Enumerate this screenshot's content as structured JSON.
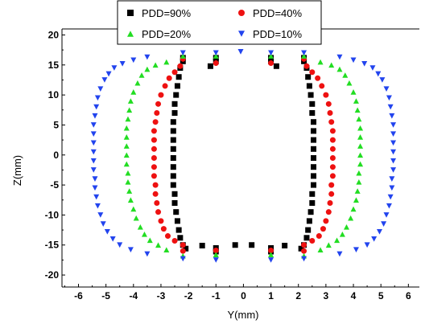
{
  "chart_data": {
    "type": "scatter",
    "title": "",
    "xlabel": "Y(mm)",
    "ylabel": "Z(mm)",
    "xlim": [
      -6.6,
      6.4
    ],
    "ylim": [
      -22,
      21
    ],
    "xticks": [
      "-6",
      "-5",
      "-4",
      "-3",
      "-2",
      "-1",
      "0",
      "1",
      "2",
      "3",
      "4",
      "5",
      "6"
    ],
    "yticks": [
      "20",
      "15",
      "10",
      "5",
      "0",
      "-5",
      "-10",
      "-15",
      "-20"
    ],
    "grid": false,
    "legend_position": "top",
    "series": [
      {
        "name": "PDD=90%",
        "color": "#000000",
        "marker": "square",
        "points": [
          [
            -2.2,
            16.2
          ],
          [
            -2.2,
            15.6
          ],
          [
            -2.3,
            14.5
          ],
          [
            -2.35,
            13.0
          ],
          [
            -2.4,
            11.5
          ],
          [
            -2.45,
            10.0
          ],
          [
            -2.5,
            8.5
          ],
          [
            -2.5,
            7.0
          ],
          [
            -2.55,
            5.5
          ],
          [
            -2.55,
            4.0
          ],
          [
            -2.55,
            2.5
          ],
          [
            -2.55,
            1.0
          ],
          [
            -2.55,
            -0.5
          ],
          [
            -2.55,
            -2.0
          ],
          [
            -2.55,
            -3.5
          ],
          [
            -2.55,
            -5.0
          ],
          [
            -2.5,
            -6.5
          ],
          [
            -2.5,
            -8.0
          ],
          [
            -2.45,
            -9.5
          ],
          [
            -2.4,
            -11.0
          ],
          [
            -2.35,
            -12.5
          ],
          [
            -2.3,
            -13.8
          ],
          [
            -2.2,
            -15.0
          ],
          [
            -2.1,
            -15.6
          ],
          [
            2.2,
            16.2
          ],
          [
            2.2,
            15.6
          ],
          [
            2.3,
            14.5
          ],
          [
            2.35,
            13.0
          ],
          [
            2.4,
            11.5
          ],
          [
            2.45,
            10.0
          ],
          [
            2.5,
            8.5
          ],
          [
            2.5,
            7.0
          ],
          [
            2.55,
            5.5
          ],
          [
            2.55,
            4.0
          ],
          [
            2.55,
            2.5
          ],
          [
            2.55,
            1.0
          ],
          [
            2.55,
            -0.5
          ],
          [
            2.55,
            -2.0
          ],
          [
            2.55,
            -3.5
          ],
          [
            2.55,
            -5.0
          ],
          [
            2.5,
            -6.5
          ],
          [
            2.5,
            -8.0
          ],
          [
            2.45,
            -9.5
          ],
          [
            2.4,
            -11.0
          ],
          [
            2.35,
            -12.5
          ],
          [
            2.3,
            -13.8
          ],
          [
            2.2,
            -15.0
          ],
          [
            2.1,
            -15.6
          ],
          [
            -1.0,
            16.2
          ],
          [
            -1.0,
            15.6
          ],
          [
            -1.2,
            14.8
          ],
          [
            -1.0,
            -15.5
          ],
          [
            -1.0,
            -16.1
          ],
          [
            -1.5,
            -15.1
          ],
          [
            -0.3,
            -15.0
          ],
          [
            1.0,
            16.2
          ],
          [
            1.0,
            15.6
          ],
          [
            1.2,
            14.8
          ],
          [
            1.0,
            -15.5
          ],
          [
            1.0,
            -16.1
          ],
          [
            1.5,
            -15.1
          ],
          [
            0.3,
            -15.0
          ]
        ]
      },
      {
        "name": "PDD=40%",
        "color": "#ee1111",
        "marker": "circle",
        "points": [
          [
            -2.2,
            16.0
          ],
          [
            -2.3,
            14.8
          ],
          [
            -2.5,
            13.8
          ],
          [
            -2.7,
            12.8
          ],
          [
            -2.85,
            11.5
          ],
          [
            -3.0,
            10.0
          ],
          [
            -3.1,
            8.5
          ],
          [
            -3.15,
            7.0
          ],
          [
            -3.2,
            5.5
          ],
          [
            -3.25,
            4.0
          ],
          [
            -3.25,
            2.5
          ],
          [
            -3.25,
            1.0
          ],
          [
            -3.25,
            -0.5
          ],
          [
            -3.25,
            -2.0
          ],
          [
            -3.25,
            -3.5
          ],
          [
            -3.2,
            -5.0
          ],
          [
            -3.2,
            -6.5
          ],
          [
            -3.15,
            -8.0
          ],
          [
            -3.1,
            -9.5
          ],
          [
            -3.0,
            -11.0
          ],
          [
            -2.9,
            -12.3
          ],
          [
            -2.75,
            -13.5
          ],
          [
            -2.5,
            -14.3
          ],
          [
            -2.2,
            -15.0
          ],
          [
            -2.2,
            -16.0
          ],
          [
            2.2,
            16.0
          ],
          [
            2.3,
            14.8
          ],
          [
            2.5,
            13.8
          ],
          [
            2.7,
            12.8
          ],
          [
            2.85,
            11.5
          ],
          [
            3.0,
            10.0
          ],
          [
            3.1,
            8.5
          ],
          [
            3.15,
            7.0
          ],
          [
            3.2,
            5.5
          ],
          [
            3.25,
            4.0
          ],
          [
            3.25,
            2.5
          ],
          [
            3.25,
            1.0
          ],
          [
            3.25,
            -0.5
          ],
          [
            3.25,
            -2.0
          ],
          [
            3.25,
            -3.5
          ],
          [
            3.2,
            -5.0
          ],
          [
            3.2,
            -6.5
          ],
          [
            3.15,
            -8.0
          ],
          [
            3.1,
            -9.5
          ],
          [
            3.0,
            -11.0
          ],
          [
            2.9,
            -12.3
          ],
          [
            2.75,
            -13.5
          ],
          [
            2.5,
            -14.3
          ],
          [
            2.2,
            -15.0
          ],
          [
            2.2,
            -16.0
          ],
          [
            -1.0,
            15.3
          ],
          [
            1.0,
            15.3
          ],
          [
            -1.0,
            -15.9
          ],
          [
            1.0,
            -15.9
          ]
        ]
      },
      {
        "name": "PDD=20%",
        "color": "#22dd22",
        "marker": "triangle-up",
        "points": [
          [
            -2.2,
            16.5
          ],
          [
            -2.8,
            15.5
          ],
          [
            -3.2,
            15.0
          ],
          [
            -3.5,
            14.3
          ],
          [
            -3.7,
            13.3
          ],
          [
            -3.85,
            12.0
          ],
          [
            -4.0,
            10.5
          ],
          [
            -4.1,
            9.0
          ],
          [
            -4.15,
            7.5
          ],
          [
            -4.2,
            6.0
          ],
          [
            -4.25,
            4.5
          ],
          [
            -4.25,
            3.0
          ],
          [
            -4.25,
            1.5
          ],
          [
            -4.25,
            0.0
          ],
          [
            -4.25,
            -1.5
          ],
          [
            -4.2,
            -3.0
          ],
          [
            -4.2,
            -4.5
          ],
          [
            -4.15,
            -6.0
          ],
          [
            -4.1,
            -7.5
          ],
          [
            -4.0,
            -9.0
          ],
          [
            -3.9,
            -10.5
          ],
          [
            -3.75,
            -12.0
          ],
          [
            -3.6,
            -13.2
          ],
          [
            -3.4,
            -14.2
          ],
          [
            -3.1,
            -15.0
          ],
          [
            -2.8,
            -15.8
          ],
          [
            -2.2,
            -16.8
          ],
          [
            2.2,
            16.5
          ],
          [
            2.8,
            15.5
          ],
          [
            3.2,
            15.0
          ],
          [
            3.5,
            14.3
          ],
          [
            3.7,
            13.3
          ],
          [
            3.85,
            12.0
          ],
          [
            4.0,
            10.5
          ],
          [
            4.1,
            9.0
          ],
          [
            4.15,
            7.5
          ],
          [
            4.2,
            6.0
          ],
          [
            4.25,
            4.5
          ],
          [
            4.25,
            3.0
          ],
          [
            4.25,
            1.5
          ],
          [
            4.25,
            0.0
          ],
          [
            4.25,
            -1.5
          ],
          [
            4.2,
            -3.0
          ],
          [
            4.2,
            -4.5
          ],
          [
            4.15,
            -6.0
          ],
          [
            4.1,
            -7.5
          ],
          [
            4.0,
            -9.0
          ],
          [
            3.9,
            -10.5
          ],
          [
            3.75,
            -12.0
          ],
          [
            3.6,
            -13.2
          ],
          [
            3.4,
            -14.2
          ],
          [
            3.1,
            -15.0
          ],
          [
            2.8,
            -15.8
          ],
          [
            2.2,
            -16.8
          ],
          [
            -1.0,
            16.5
          ],
          [
            1.0,
            16.5
          ],
          [
            -1.0,
            -16.6
          ],
          [
            1.0,
            -16.6
          ]
        ]
      },
      {
        "name": "PDD=10%",
        "color": "#2244ee",
        "marker": "triangle-down",
        "points": [
          [
            -0.1,
            17.2
          ],
          [
            -1.0,
            17.0
          ],
          [
            -2.2,
            17.0
          ],
          [
            -3.5,
            16.3
          ],
          [
            -4.0,
            15.8
          ],
          [
            -4.4,
            15.2
          ],
          [
            -4.7,
            14.5
          ],
          [
            -4.9,
            13.5
          ],
          [
            -5.05,
            12.5
          ],
          [
            -5.2,
            11.0
          ],
          [
            -5.3,
            9.5
          ],
          [
            -5.35,
            8.0
          ],
          [
            -5.4,
            6.5
          ],
          [
            -5.45,
            5.0
          ],
          [
            -5.45,
            3.5
          ],
          [
            -5.45,
            2.0
          ],
          [
            -5.45,
            0.5
          ],
          [
            -5.45,
            -1.0
          ],
          [
            -5.45,
            -2.5
          ],
          [
            -5.4,
            -4.0
          ],
          [
            -5.4,
            -5.5
          ],
          [
            -5.35,
            -7.0
          ],
          [
            -5.3,
            -8.5
          ],
          [
            -5.2,
            -10.0
          ],
          [
            -5.1,
            -11.5
          ],
          [
            -4.95,
            -12.8
          ],
          [
            -4.75,
            -14.0
          ],
          [
            -4.5,
            -15.0
          ],
          [
            -4.1,
            -15.8
          ],
          [
            -3.5,
            -16.5
          ],
          [
            -2.2,
            -17.3
          ],
          [
            -1.0,
            -17.5
          ],
          [
            1.0,
            17.0
          ],
          [
            2.2,
            17.0
          ],
          [
            3.5,
            16.3
          ],
          [
            4.0,
            15.8
          ],
          [
            4.4,
            15.2
          ],
          [
            4.7,
            14.5
          ],
          [
            4.9,
            13.5
          ],
          [
            5.05,
            12.5
          ],
          [
            5.2,
            11.0
          ],
          [
            5.3,
            9.5
          ],
          [
            5.35,
            8.0
          ],
          [
            5.4,
            6.5
          ],
          [
            5.45,
            5.0
          ],
          [
            5.45,
            3.5
          ],
          [
            5.45,
            2.0
          ],
          [
            5.45,
            0.5
          ],
          [
            5.45,
            -1.0
          ],
          [
            5.45,
            -2.5
          ],
          [
            5.4,
            -4.0
          ],
          [
            5.4,
            -5.5
          ],
          [
            5.35,
            -7.0
          ],
          [
            5.3,
            -8.5
          ],
          [
            5.2,
            -10.0
          ],
          [
            5.1,
            -11.5
          ],
          [
            4.95,
            -12.8
          ],
          [
            4.75,
            -14.0
          ],
          [
            4.5,
            -15.0
          ],
          [
            4.1,
            -15.8
          ],
          [
            3.5,
            -16.5
          ],
          [
            2.2,
            -17.3
          ],
          [
            1.0,
            -17.5
          ]
        ]
      }
    ]
  }
}
